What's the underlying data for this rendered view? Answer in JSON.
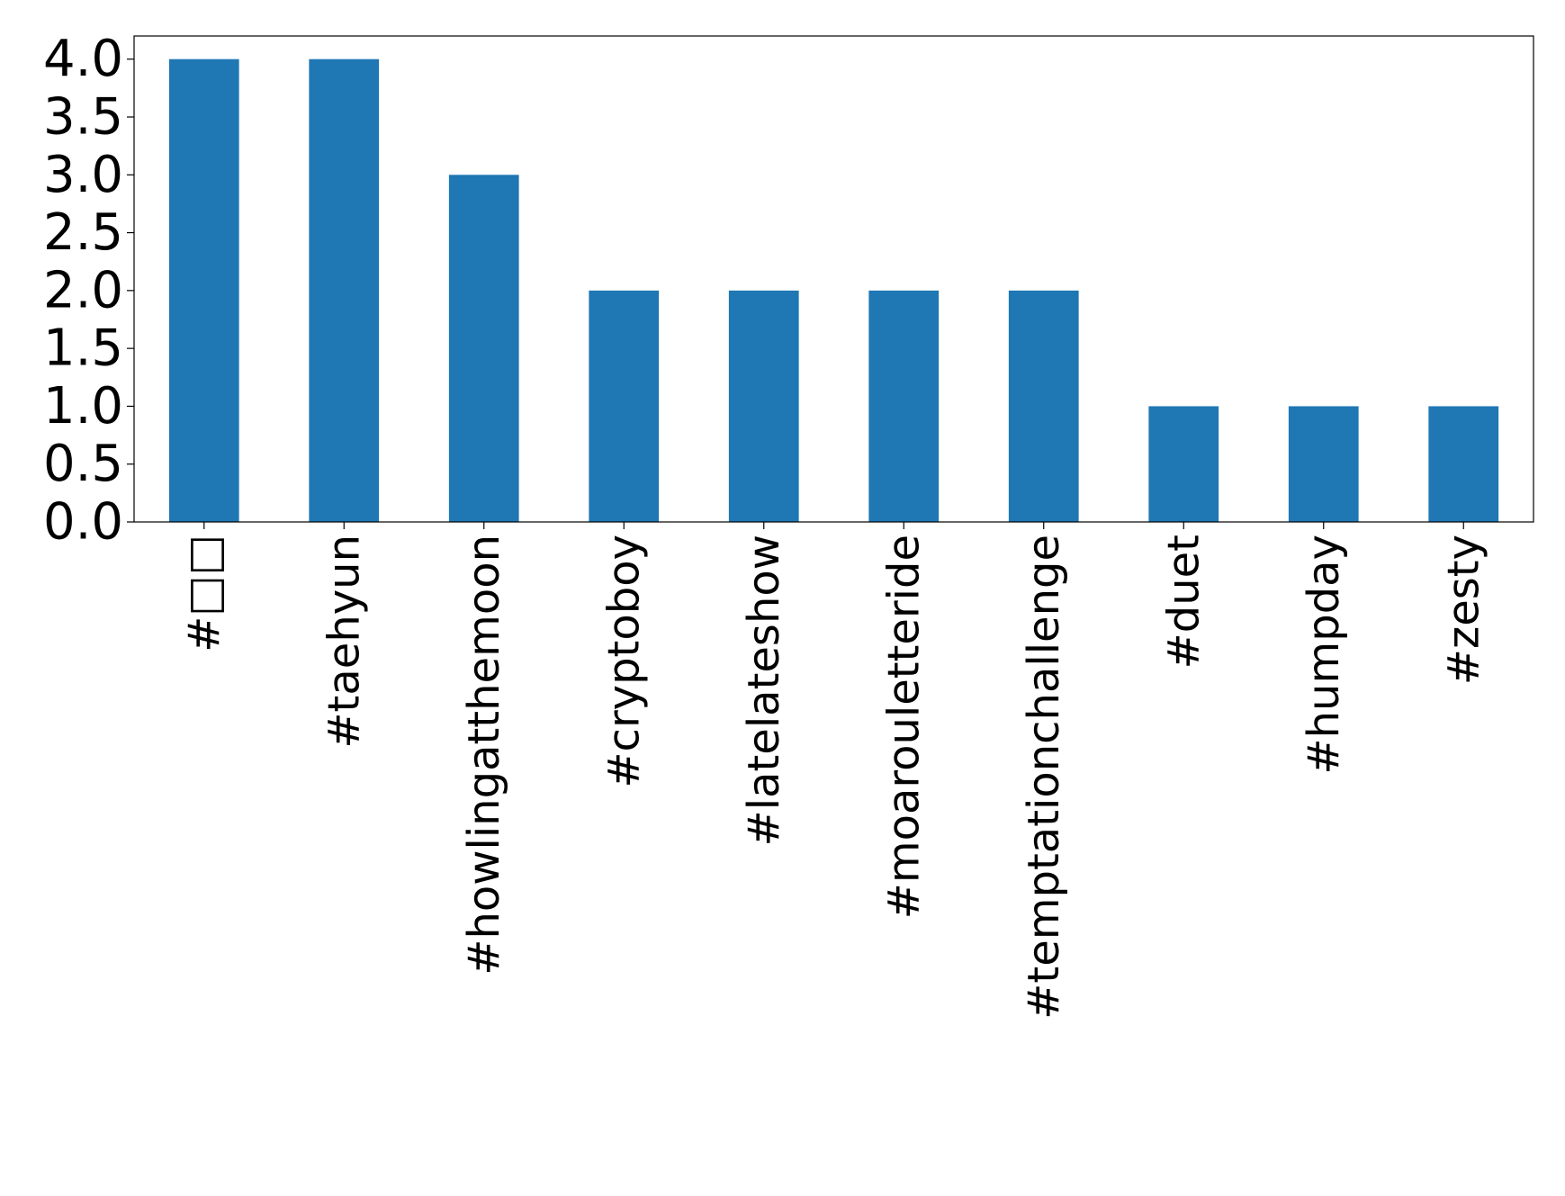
{
  "chart_data": {
    "type": "bar",
    "categories": [
      "#□□",
      "#taehyun",
      "#howlingatthemoon",
      "#cryptoboy",
      "#latelateshow",
      "#moarouletteride",
      "#temptationchallenge",
      "#duet",
      "#humpday",
      "#zesty"
    ],
    "values": [
      4,
      4,
      3,
      2,
      2,
      2,
      2,
      1,
      1,
      1
    ],
    "ylim": [
      0,
      4.2
    ],
    "yticks": [
      "0.0",
      "0.5",
      "1.0",
      "1.5",
      "2.0",
      "2.5",
      "3.0",
      "3.5",
      "4.0"
    ],
    "grid": false,
    "bar_color": "#1f77b4"
  }
}
